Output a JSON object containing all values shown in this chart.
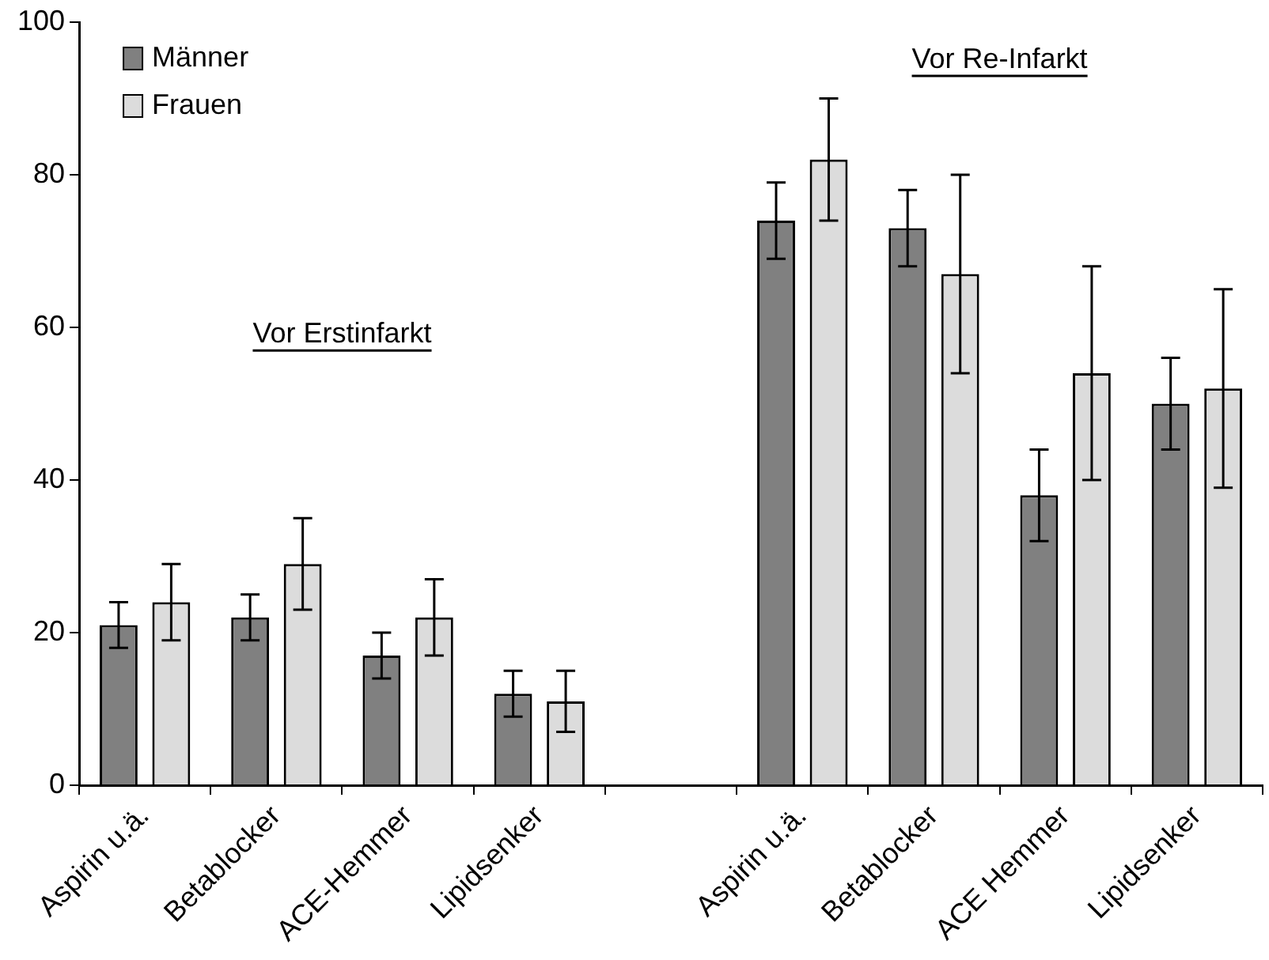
{
  "chart_data": {
    "type": "bar",
    "categories": [
      "Aspirin u.ä.",
      "Betablocker",
      "ACE-Hemmer",
      "Lipidsenker",
      null,
      "Aspirin u.ä.",
      "Betablocker",
      "ACE Hemmer",
      "Lipidsenker"
    ],
    "series": [
      {
        "name": "Männer",
        "color": "#808080",
        "values": [
          21,
          22,
          17,
          12,
          null,
          74,
          73,
          38,
          50
        ],
        "errors": [
          3,
          3,
          3,
          3,
          null,
          5,
          5,
          6,
          6
        ]
      },
      {
        "name": "Frauen",
        "color": "#dcdcdc",
        "values": [
          24,
          29,
          22,
          11,
          null,
          82,
          67,
          54,
          52
        ],
        "errors": [
          5,
          6,
          5,
          4,
          null,
          8,
          13,
          14,
          13
        ]
      }
    ],
    "ylim": [
      0,
      100
    ],
    "yticks": [
      0,
      20,
      40,
      60,
      80,
      100
    ],
    "grid": false,
    "legend": "top left",
    "annotations": [
      "Vor Erstinfarkt",
      "Vor Re-Infarkt"
    ]
  }
}
